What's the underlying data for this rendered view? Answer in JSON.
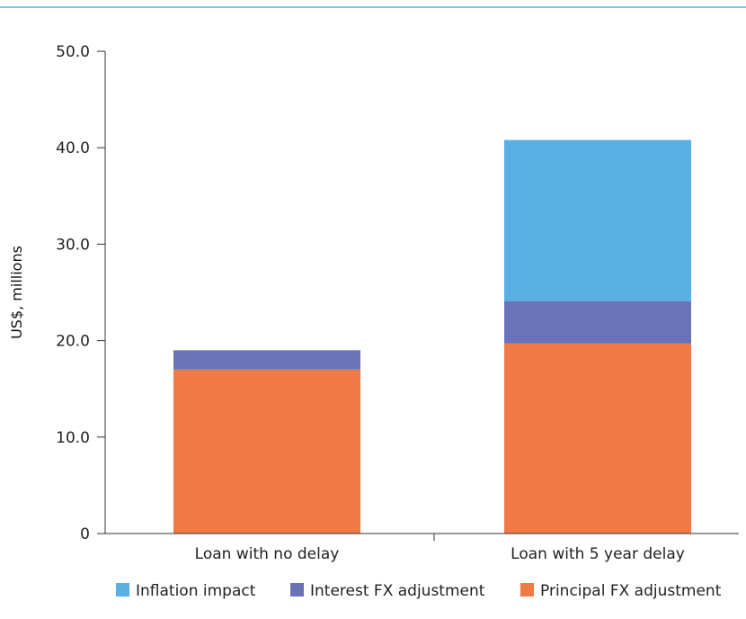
{
  "chart_data": {
    "type": "bar",
    "stacked": true,
    "categories": [
      "Loan with no delay",
      "Loan with 5 year delay"
    ],
    "series": [
      {
        "name": "Principal FX adjustment",
        "values": [
          17.0,
          19.7
        ],
        "color": "#f07945"
      },
      {
        "name": "Interest FX adjustment",
        "values": [
          2.0,
          4.4
        ],
        "color": "#6b73b8"
      },
      {
        "name": "Inflation impact",
        "values": [
          0.0,
          16.7
        ],
        "color": "#58b0e3"
      }
    ],
    "legend_order": [
      "Inflation impact",
      "Interest FX adjustment",
      "Principal FX adjustment"
    ],
    "title": "",
    "xlabel": "",
    "ylabel": "US$, millions",
    "ylim": [
      0,
      50
    ],
    "yticks": [
      "0",
      "10.0",
      "20.0",
      "30.0",
      "40.0",
      "50.0"
    ],
    "ytick_values": [
      0,
      10,
      20,
      30,
      40,
      50
    ],
    "grid": false,
    "legend_position": "bottom",
    "top_rule_color": "#58b0e3"
  }
}
